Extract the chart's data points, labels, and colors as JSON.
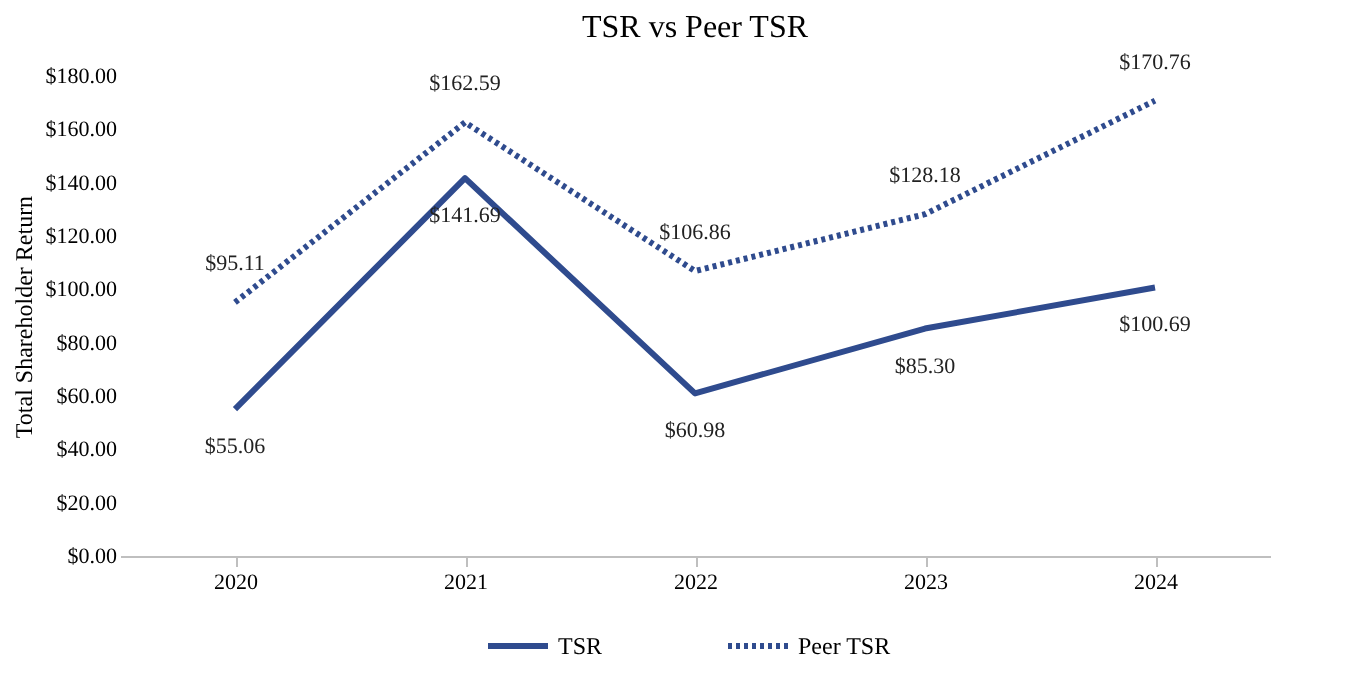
{
  "chart_data": {
    "type": "line",
    "title": "TSR vs Peer TSR",
    "ylabel": "Total Shareholder Return",
    "categories": [
      "2020",
      "2021",
      "2022",
      "2023",
      "2024"
    ],
    "series": [
      {
        "name": "TSR",
        "color": "#2f4b8e",
        "line_style": "solid",
        "values": [
          55.06,
          141.69,
          60.98,
          85.3,
          100.69
        ],
        "value_labels": [
          "$55.06",
          "$141.69",
          "$60.98",
          "$85.30",
          "$100.69"
        ]
      },
      {
        "name": "Peer TSR",
        "color": "#2f4b8e",
        "line_style": "dotted",
        "values": [
          95.11,
          162.59,
          106.86,
          128.18,
          170.76
        ],
        "value_labels": [
          "$95.11",
          "$162.59",
          "$106.86",
          "$128.18",
          "$170.76"
        ]
      }
    ],
    "ylim": [
      0,
      180
    ],
    "yticks": [
      {
        "value": 0,
        "label": "$0.00"
      },
      {
        "value": 20,
        "label": "$20.00"
      },
      {
        "value": 40,
        "label": "$40.00"
      },
      {
        "value": 60,
        "label": "$60.00"
      },
      {
        "value": 80,
        "label": "$80.00"
      },
      {
        "value": 100,
        "label": "$100.00"
      },
      {
        "value": 120,
        "label": "$120.00"
      },
      {
        "value": 140,
        "label": "$140.00"
      },
      {
        "value": 160,
        "label": "$160.00"
      },
      {
        "value": 180,
        "label": "$180.00"
      }
    ],
    "grid": false,
    "legend": "bottom",
    "marker": "none"
  }
}
